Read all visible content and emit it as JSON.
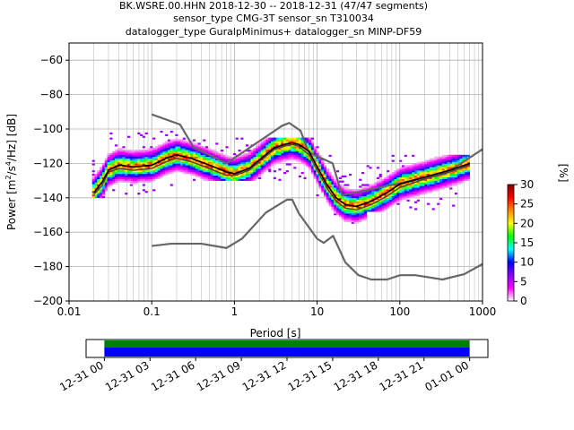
{
  "title_lines": [
    "BK.WSRE.00.HHN   2018-12-30 -- 2018-12-31  (47/47 segments)",
    "sensor_type CMG-3T sensor_sn T310034",
    "datalogger_type GuralpMinimus+ datalogger_sn MINP-DF59"
  ],
  "chart_data": {
    "type": "heatmap",
    "xlabel": "Period [s]",
    "ylabel_main": "Power [m",
    "ylabel_sup1": "2",
    "ylabel_mid": "/s",
    "ylabel_sup2": "4",
    "ylabel_end": "/Hz] [dB]",
    "x_scale": "log",
    "xlim": [
      0.01,
      1000
    ],
    "ylim": [
      -200,
      -50
    ],
    "x_ticks": [
      {
        "value": 0.01,
        "label": "0.01"
      },
      {
        "value": 0.1,
        "label": "0.1"
      },
      {
        "value": 1,
        "label": "1"
      },
      {
        "value": 10,
        "label": "10"
      },
      {
        "value": 100,
        "label": "100"
      },
      {
        "value": 1000,
        "label": "1000"
      }
    ],
    "y_ticks": [
      {
        "value": -60,
        "label": "−60"
      },
      {
        "value": -80,
        "label": "−80"
      },
      {
        "value": -100,
        "label": "−100"
      },
      {
        "value": -120,
        "label": "−120"
      },
      {
        "value": -140,
        "label": "−140"
      },
      {
        "value": -160,
        "label": "−160"
      },
      {
        "value": -180,
        "label": "−180"
      },
      {
        "value": -200,
        "label": "−200"
      }
    ],
    "grid": true,
    "noise_models": {
      "color": "#666666",
      "nhnm": [
        [
          0.1,
          -91.5
        ],
        [
          0.22,
          -97.4
        ],
        [
          0.32,
          -110.5
        ],
        [
          0.8,
          -120
        ],
        [
          3.8,
          -98
        ],
        [
          4.6,
          -96.5
        ],
        [
          6.3,
          -101
        ],
        [
          7.9,
          -113.5
        ],
        [
          15.4,
          -120
        ],
        [
          20,
          -138.5
        ],
        [
          354.8,
          -126
        ],
        [
          10000,
          -80
        ]
      ],
      "nlnm": [
        [
          0.1,
          -168
        ],
        [
          0.17,
          -166.7
        ],
        [
          0.4,
          -166.7
        ],
        [
          0.8,
          -169.2
        ],
        [
          1.24,
          -163.7
        ],
        [
          2.4,
          -148.6
        ],
        [
          4.3,
          -141.1
        ],
        [
          5,
          -141.1
        ],
        [
          6,
          -149
        ],
        [
          10,
          -163.8
        ],
        [
          12,
          -166.2
        ],
        [
          15.6,
          -162.1
        ],
        [
          21.9,
          -177.5
        ],
        [
          31.6,
          -185
        ],
        [
          45,
          -187.5
        ],
        [
          70,
          -187.5
        ],
        [
          101,
          -185
        ],
        [
          154,
          -185
        ],
        [
          328,
          -187.5
        ],
        [
          600,
          -184.4
        ],
        [
          1000,
          -178.5
        ],
        [
          10000,
          -168
        ]
      ]
    },
    "mean_curve": {
      "color": "#000000",
      "points": [
        [
          0.02,
          -137
        ],
        [
          0.025,
          -131
        ],
        [
          0.03,
          -124
        ],
        [
          0.04,
          -121
        ],
        [
          0.06,
          -122
        ],
        [
          0.1,
          -121
        ],
        [
          0.15,
          -117
        ],
        [
          0.2,
          -115
        ],
        [
          0.3,
          -117
        ],
        [
          0.5,
          -121
        ],
        [
          0.8,
          -125
        ],
        [
          1,
          -126
        ],
        [
          1.5,
          -123
        ],
        [
          2,
          -118
        ],
        [
          3,
          -111
        ],
        [
          4,
          -109
        ],
        [
          5,
          -108
        ],
        [
          6,
          -109
        ],
        [
          8,
          -113
        ],
        [
          10,
          -122
        ],
        [
          13,
          -132
        ],
        [
          17,
          -140
        ],
        [
          22,
          -144
        ],
        [
          30,
          -145
        ],
        [
          45,
          -142
        ],
        [
          70,
          -137
        ],
        [
          100,
          -132
        ],
        [
          200,
          -128
        ],
        [
          400,
          -124
        ],
        [
          700,
          -120
        ]
      ]
    },
    "median_curve": {
      "color": "#444444",
      "points": [
        [
          0.02,
          -138
        ],
        [
          0.025,
          -133
        ],
        [
          0.03,
          -125
        ],
        [
          0.04,
          -123
        ],
        [
          0.06,
          -124
        ],
        [
          0.1,
          -123
        ],
        [
          0.15,
          -119
        ],
        [
          0.2,
          -117
        ],
        [
          0.3,
          -119
        ],
        [
          0.5,
          -123
        ],
        [
          0.8,
          -127
        ],
        [
          1,
          -127
        ],
        [
          1.5,
          -124
        ],
        [
          2,
          -119
        ],
        [
          3,
          -112
        ],
        [
          4,
          -110
        ],
        [
          5,
          -109
        ],
        [
          6,
          -110
        ],
        [
          8,
          -115
        ],
        [
          10,
          -124
        ],
        [
          13,
          -134
        ],
        [
          17,
          -142
        ],
        [
          22,
          -146
        ],
        [
          30,
          -147
        ],
        [
          45,
          -144
        ],
        [
          70,
          -139
        ],
        [
          100,
          -134
        ],
        [
          200,
          -129
        ],
        [
          400,
          -125
        ],
        [
          700,
          -121
        ]
      ]
    },
    "density_bands": [
      {
        "x0": 0.019,
        "x1": 0.2,
        "ymin": -140,
        "ymax": -100
      },
      {
        "x0": 0.2,
        "x1": 1,
        "ymin": -130,
        "ymax": -105
      },
      {
        "x0": 1,
        "x1": 10,
        "ymin": -130,
        "ymax": -105
      },
      {
        "x0": 10,
        "x1": 40,
        "ymin": -155,
        "ymax": -110
      },
      {
        "x0": 40,
        "x1": 700,
        "ymin": -148,
        "ymax": -115
      }
    ],
    "colorbar": {
      "label": "[%]",
      "min": 0,
      "max": 30,
      "ticks": [
        {
          "value": 0,
          "label": "0"
        },
        {
          "value": 5,
          "label": "5"
        },
        {
          "value": 10,
          "label": "10"
        },
        {
          "value": 15,
          "label": "15"
        },
        {
          "value": 20,
          "label": "20"
        },
        {
          "value": 25,
          "label": "25"
        },
        {
          "value": 30,
          "label": "30"
        }
      ],
      "stops": [
        "#ffffff",
        "#ff00ff",
        "#8800ff",
        "#0000ff",
        "#00ffff",
        "#00ff00",
        "#ffff00",
        "#ff8800",
        "#ff0000",
        "#880000"
      ]
    },
    "timeline": {
      "start": "2018-12-31T00:00",
      "end": "2019-01-01T00:00",
      "view_start_hours": -1.2,
      "view_end_hours": 25.2,
      "ticks": [
        {
          "hours": 0,
          "label": "12-31 00"
        },
        {
          "hours": 3,
          "label": "12-31 03"
        },
        {
          "hours": 6,
          "label": "12-31 06"
        },
        {
          "hours": 9,
          "label": "12-31 09"
        },
        {
          "hours": 12,
          "label": "12-31 12"
        },
        {
          "hours": 15,
          "label": "12-31 15"
        },
        {
          "hours": 18,
          "label": "12-31 18"
        },
        {
          "hours": 21,
          "label": "12-31 21"
        },
        {
          "hours": 24,
          "label": "01-01 00"
        }
      ],
      "data_coverage_color": "#008000",
      "segment_coverage_color": "#0000ff",
      "coverage_hours": [
        0,
        24
      ]
    }
  }
}
